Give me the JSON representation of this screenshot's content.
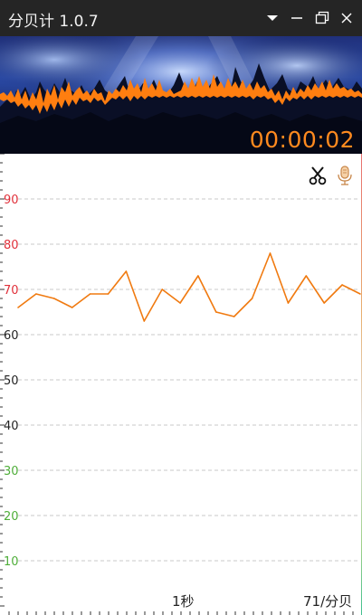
{
  "window": {
    "title": "分贝计 1.0.7"
  },
  "banner": {
    "timer": "00:00:02"
  },
  "toolbar": {
    "scissors_icon": "scissors-icon",
    "mic_icon": "microphone-icon"
  },
  "footer": {
    "time_scale_label": "1秒",
    "current_reading": "71/分贝"
  },
  "colors": {
    "accent": "#ff8a1f",
    "line": "#f07a10",
    "tick_high": "#e0303a",
    "tick_mid": "#222222",
    "tick_low": "#4fae3a",
    "grid": "#c8c8c8"
  },
  "chart_data": {
    "type": "line",
    "ylim": [
      0,
      100
    ],
    "yticks": [
      {
        "value": 90,
        "label": "90",
        "tier": "high"
      },
      {
        "value": 80,
        "label": "80",
        "tier": "high"
      },
      {
        "value": 70,
        "label": "70",
        "tier": "high"
      },
      {
        "value": 60,
        "label": "60",
        "tier": "mid"
      },
      {
        "value": 50,
        "label": "50",
        "tier": "mid"
      },
      {
        "value": 40,
        "label": "40",
        "tier": "mid"
      },
      {
        "value": 30,
        "label": "30",
        "tier": "low"
      },
      {
        "value": 20,
        "label": "20",
        "tier": "low"
      },
      {
        "value": 10,
        "label": "10",
        "tier": "low"
      }
    ],
    "grid": true,
    "series": [
      {
        "values": [
          66,
          69,
          68,
          66,
          69,
          69,
          74,
          63,
          70,
          67,
          73,
          65,
          64,
          68,
          78,
          67,
          73,
          67,
          71,
          69
        ]
      }
    ]
  }
}
